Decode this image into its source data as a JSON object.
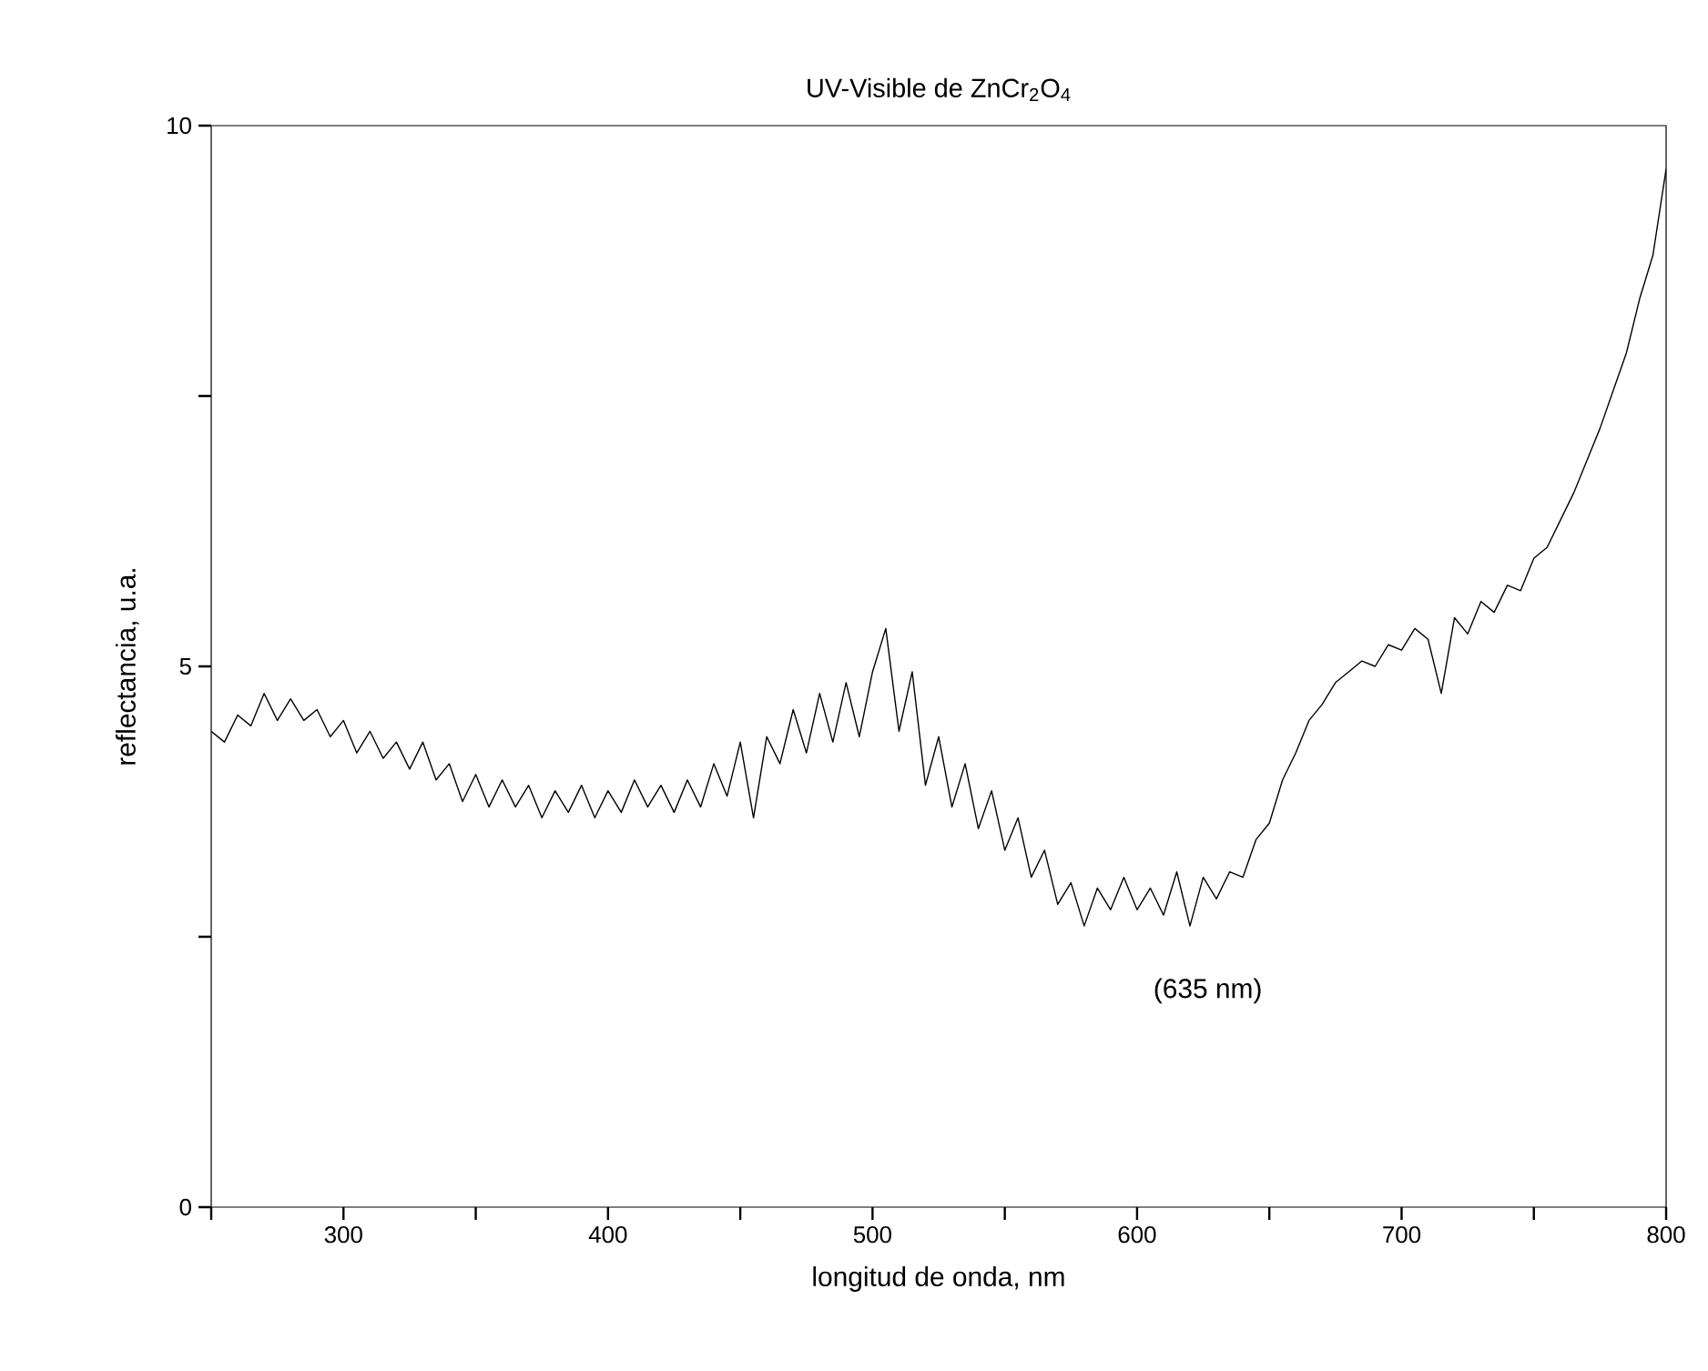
{
  "chart_data": {
    "type": "line",
    "title": "UV-Visible de ZnCr$_{2}$O$_{4}$",
    "xlabel": "longitud de onda, nm",
    "ylabel": "reflectancia, u.a.",
    "x": [
      250,
      255,
      260,
      265,
      270,
      275,
      280,
      285,
      290,
      295,
      300,
      305,
      310,
      315,
      320,
      325,
      330,
      335,
      340,
      345,
      350,
      355,
      360,
      365,
      370,
      375,
      380,
      385,
      390,
      395,
      400,
      405,
      410,
      415,
      420,
      425,
      430,
      435,
      440,
      445,
      450,
      455,
      460,
      465,
      470,
      475,
      480,
      485,
      490,
      495,
      500,
      505,
      510,
      515,
      520,
      525,
      530,
      535,
      540,
      545,
      550,
      555,
      560,
      565,
      570,
      575,
      580,
      585,
      590,
      595,
      600,
      605,
      610,
      615,
      620,
      625,
      630,
      635,
      640,
      645,
      650,
      655,
      660,
      665,
      670,
      675,
      680,
      685,
      690,
      695,
      700,
      705,
      710,
      715,
      720,
      725,
      730,
      735,
      740,
      745,
      750,
      755,
      760,
      765,
      770,
      775,
      780,
      785,
      790,
      795,
      800
    ],
    "series": [
      {
        "color": "#000000",
        "values": [
          4.4,
          4.3,
          4.55,
          4.45,
          4.75,
          4.5,
          4.7,
          4.5,
          4.6,
          4.35,
          4.5,
          4.2,
          4.4,
          4.15,
          4.3,
          4.05,
          4.3,
          3.95,
          4.1,
          3.75,
          4.0,
          3.7,
          3.95,
          3.7,
          3.9,
          3.6,
          3.85,
          3.65,
          3.9,
          3.6,
          3.85,
          3.65,
          3.95,
          3.7,
          3.9,
          3.65,
          3.95,
          3.7,
          4.1,
          3.8,
          4.3,
          3.6,
          4.35,
          4.1,
          4.6,
          4.2,
          4.75,
          4.3,
          4.85,
          4.35,
          4.95,
          5.35,
          4.4,
          4.95,
          3.9,
          4.35,
          3.7,
          4.1,
          3.5,
          3.85,
          3.3,
          3.6,
          3.05,
          3.3,
          2.8,
          3.0,
          2.6,
          2.95,
          2.75,
          3.05,
          2.75,
          2.95,
          2.7,
          3.1,
          2.6,
          3.05,
          2.85,
          3.1,
          3.05,
          3.4,
          3.55,
          3.95,
          4.2,
          4.5,
          4.65,
          4.85,
          4.95,
          5.05,
          5.0,
          5.2,
          5.15,
          5.35,
          5.25,
          4.75,
          5.45,
          5.3,
          5.6,
          5.5,
          5.75,
          5.7,
          6.0,
          6.1,
          6.35,
          6.6,
          6.9,
          7.2,
          7.55,
          7.9,
          8.4,
          8.8,
          9.6
        ]
      }
    ],
    "xlim": [
      250,
      800
    ],
    "ylim": [
      0,
      10
    ],
    "xticks": [
      {
        "value": 250,
        "label": null
      },
      300,
      {
        "value": 350,
        "label": null
      },
      400,
      {
        "value": 450,
        "label": null
      },
      500,
      {
        "value": 550,
        "label": null
      },
      600,
      {
        "value": 650,
        "label": null
      },
      700,
      {
        "value": 750,
        "label": null
      },
      800
    ],
    "yticks": [
      0,
      {
        "value": 2.5,
        "label": null
      },
      5,
      {
        "value": 7.5,
        "label": null
      },
      10
    ],
    "marker": "none",
    "line_style": "solid",
    "grid": false,
    "annotations": [
      "(635 nm)"
    ]
  }
}
